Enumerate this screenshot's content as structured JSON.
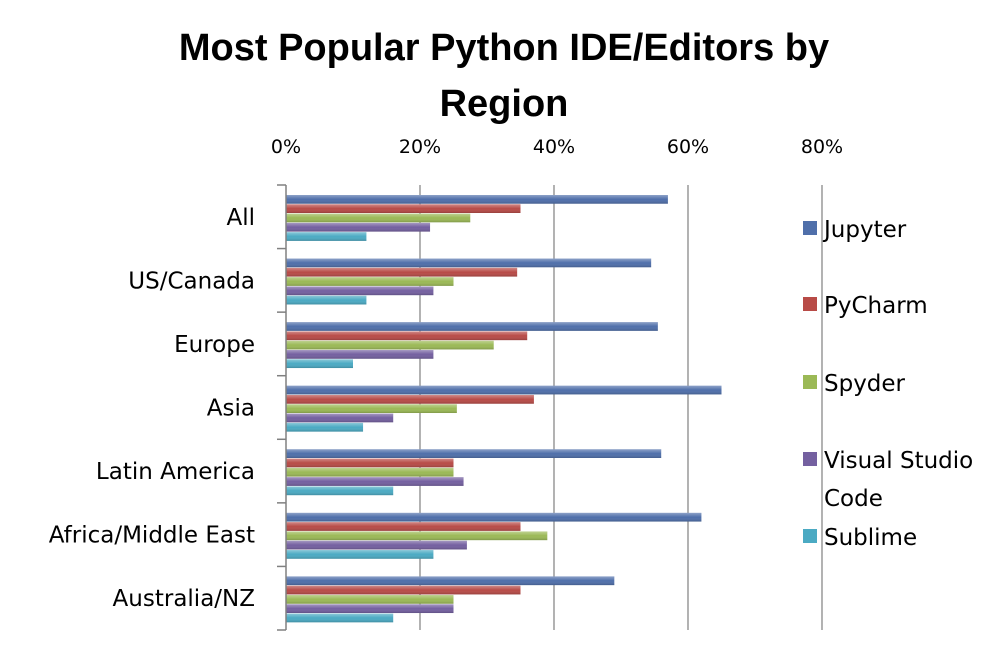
{
  "chart_data": {
    "type": "bar",
    "orientation": "horizontal",
    "title": "Most Popular Python IDE/Editors by Region",
    "title_lines": [
      "Most Popular Python IDE/Editors by",
      "Region"
    ],
    "xlabel": "",
    "ylabel": "",
    "xlim": [
      0,
      80
    ],
    "xticks": [
      "0%",
      "20%",
      "40%",
      "60%",
      "80%"
    ],
    "xtick_values": [
      0,
      20,
      40,
      60,
      80
    ],
    "grid": "vertical",
    "legend_position": "right",
    "categories": [
      "All",
      "US/Canada",
      "Europe",
      "Asia",
      "Latin America",
      "Africa/Middle East",
      "Australia/NZ"
    ],
    "series": [
      {
        "name": "Jupyter",
        "legend_lines": [
          "Jupyter"
        ],
        "color": "#4F6FAA",
        "values": [
          57,
          54.5,
          55.5,
          65,
          56,
          62,
          49
        ]
      },
      {
        "name": "PyCharm",
        "legend_lines": [
          "PyCharm"
        ],
        "color": "#B84B47",
        "values": [
          35,
          34.5,
          36,
          37,
          25,
          35,
          35
        ]
      },
      {
        "name": "Spyder",
        "legend_lines": [
          "Spyder"
        ],
        "color": "#9BB956",
        "values": [
          27.5,
          25,
          31,
          25.5,
          25,
          39,
          25
        ]
      },
      {
        "name": "Visual Studio Code",
        "legend_lines": [
          "Visual Studio",
          "Code"
        ],
        "color": "#7460A0",
        "values": [
          21.5,
          22,
          22,
          16,
          26.5,
          27,
          25
        ]
      },
      {
        "name": "Sublime",
        "legend_lines": [
          "Sublime"
        ],
        "color": "#4BAAC3",
        "values": [
          12,
          12,
          10,
          11.5,
          16,
          22,
          16
        ]
      }
    ]
  }
}
